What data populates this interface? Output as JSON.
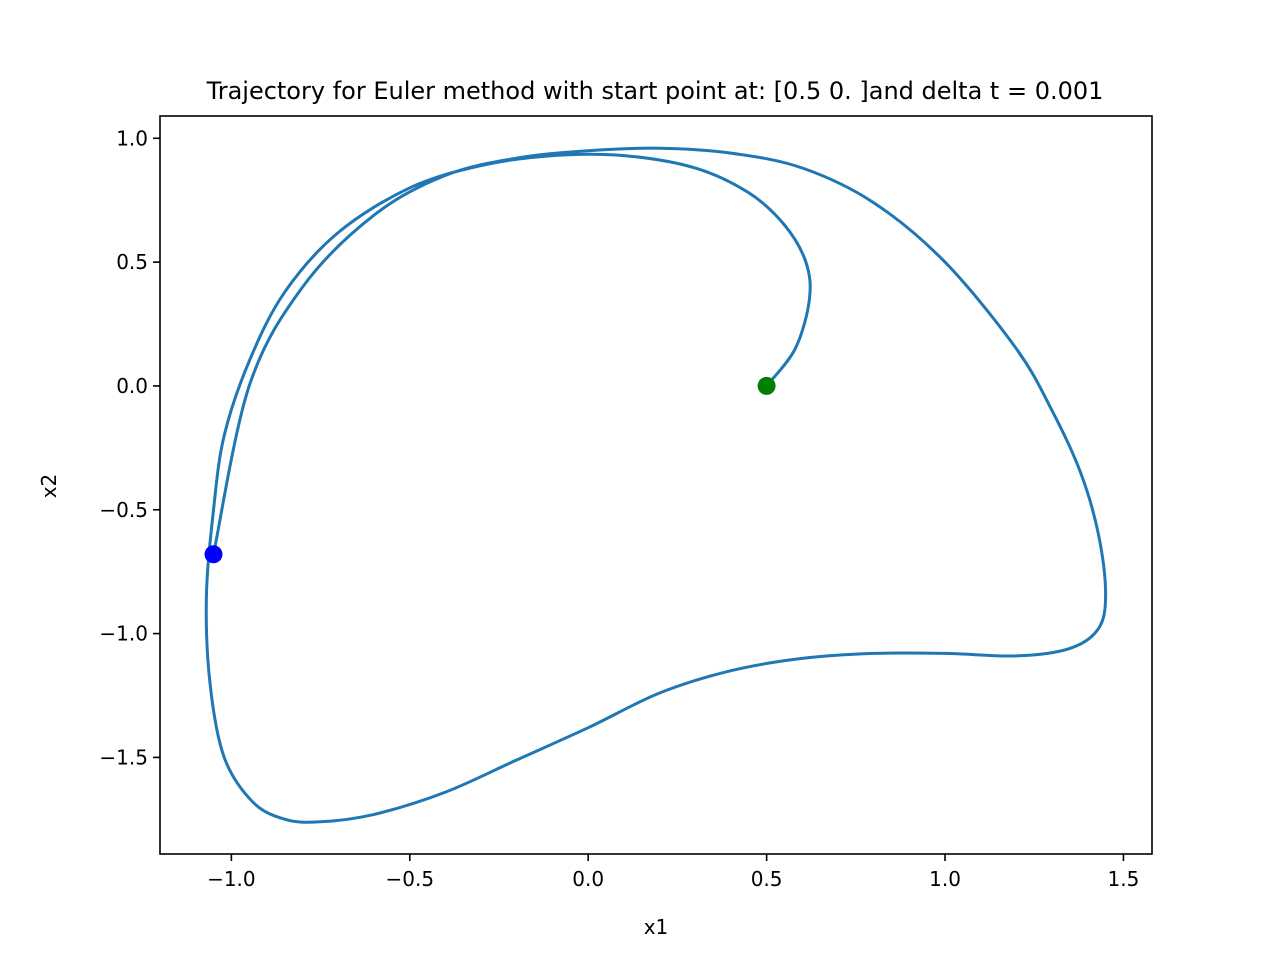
{
  "chart_data": {
    "type": "line",
    "title": "Trajectory for Euler method with start point at: [0.5 0. ]and delta t = 0.001",
    "xlabel": "x1",
    "ylabel": "x2",
    "xlim": [
      -1.2,
      1.58
    ],
    "ylim": [
      -1.89,
      1.09
    ],
    "grid": false,
    "xticks": [
      -1.0,
      -0.5,
      0.0,
      0.5,
      1.0,
      1.5
    ],
    "xtick_labels": [
      "−1.0",
      "−0.5",
      "0.0",
      "0.5",
      "1.0",
      "1.5"
    ],
    "yticks": [
      1.0,
      0.5,
      0.0,
      -0.5,
      -1.0,
      -1.5
    ],
    "ytick_labels": [
      "1.0",
      "0.5",
      "0.0",
      "−0.5",
      "−1.0",
      "−1.5"
    ],
    "series": [
      {
        "color": "#1f77b4",
        "x": [
          0.5,
          0.58,
          0.62,
          0.61,
          0.55,
          0.45,
          0.3,
          0.1,
          -0.1,
          -0.3,
          -0.5,
          -0.7,
          -0.85,
          -0.95,
          -1.02,
          -1.05,
          -1.07,
          -1.06,
          -1.02,
          -0.94,
          -0.85,
          -0.75,
          -0.6,
          -0.4,
          -0.2,
          0.0,
          0.2,
          0.4,
          0.6,
          0.8,
          1.0,
          1.2,
          1.35,
          1.43,
          1.45,
          1.43,
          1.38,
          1.3,
          1.2,
          1.0,
          0.8,
          0.6,
          0.4,
          0.2,
          0.0,
          -0.2,
          -0.4,
          -0.6,
          -0.8,
          -0.95,
          -1.05
        ],
        "y": [
          0.0,
          0.15,
          0.35,
          0.5,
          0.65,
          0.78,
          0.88,
          0.93,
          0.93,
          0.89,
          0.8,
          0.62,
          0.38,
          0.1,
          -0.2,
          -0.5,
          -0.85,
          -1.2,
          -1.5,
          -1.68,
          -1.75,
          -1.76,
          -1.73,
          -1.64,
          -1.51,
          -1.38,
          -1.24,
          -1.15,
          -1.1,
          -1.08,
          -1.08,
          -1.09,
          -1.06,
          -0.98,
          -0.84,
          -0.6,
          -0.35,
          -0.1,
          0.15,
          0.5,
          0.74,
          0.88,
          0.94,
          0.96,
          0.95,
          0.92,
          0.85,
          0.69,
          0.4,
          0.0,
          -0.68
        ]
      }
    ],
    "markers": [
      {
        "x": 0.5,
        "y": 0.0,
        "color": "#008000"
      },
      {
        "x": -1.05,
        "y": -0.68,
        "color": "#0000ff"
      }
    ]
  }
}
